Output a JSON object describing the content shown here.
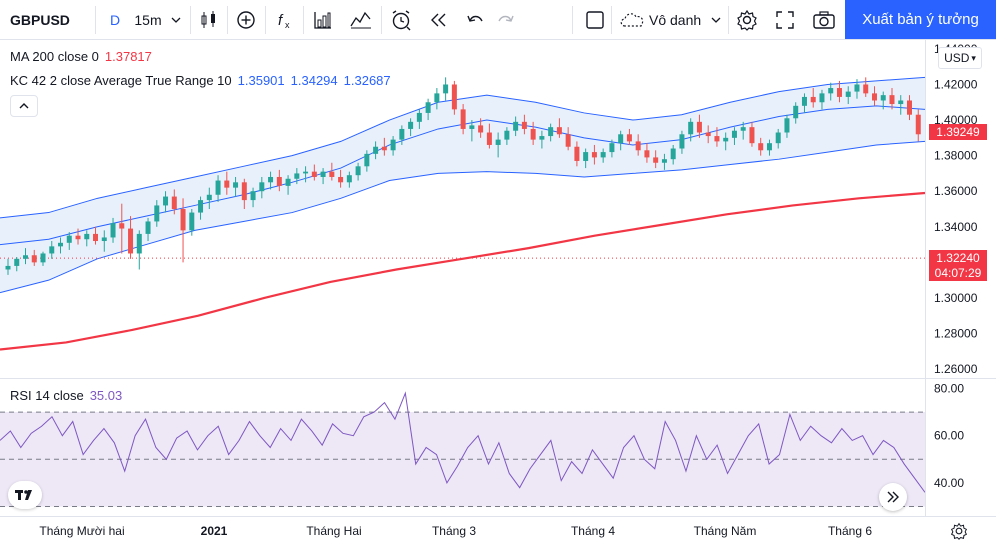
{
  "toolbar": {
    "symbol": "GBPUSD",
    "interval_type": "D",
    "interval": "15m",
    "style_name": "Vô danh",
    "publish_label": "Xuất bản ý tưởng",
    "icons": [
      "chevron-down-icon",
      "candles-icon",
      "add-indicator-icon",
      "fx-indicators-icon",
      "bar-chart-icon",
      "line-chart-icon",
      "alarm-clock-icon",
      "replay-icon",
      "undo-icon",
      "redo-icon",
      "layout-icon",
      "cloud-icon",
      "gear-icon",
      "fullscreen-icon",
      "camera-icon"
    ]
  },
  "legends": {
    "ma": {
      "label": "MA 200 close 0",
      "value": "1.37817",
      "color": "#f23645"
    },
    "kc": {
      "label": "KC 42 2 close Average True Range 10",
      "values": [
        "1.35901",
        "1.34294",
        "1.32687"
      ],
      "color": "#2962ff"
    },
    "rsi": {
      "label": "RSI 14 close",
      "value": "35.03",
      "color": "#7e57c2"
    }
  },
  "price_axis": {
    "currency": "USD",
    "ticks": [
      "1.44000",
      "1.42000",
      "1.40000",
      "1.38000",
      "1.36000",
      "1.34000",
      "1.32000",
      "1.30000",
      "1.28000",
      "1.26000"
    ],
    "last_price": "1.39249",
    "crosshair_price": "1.32240",
    "countdown": "04:07:29",
    "colors": {
      "last": "#f23645",
      "crosshair": "#f23645",
      "countdown": "#f23645"
    }
  },
  "rsi_axis": {
    "ticks": [
      "80.00",
      "60.00",
      "40.00"
    ],
    "levels": [
      70,
      50,
      30
    ]
  },
  "time_axis": {
    "labels": [
      "Tháng Mười hai",
      "2021",
      "Tháng Hai",
      "Tháng 3",
      "Tháng 4",
      "Tháng Năm",
      "Tháng 6"
    ]
  },
  "colors": {
    "up": "#26a69a",
    "down": "#ef5350",
    "band": "#2962ff",
    "band_fill": "#e8f1fb",
    "ma": "#f23645",
    "rsi": "#7e57c2",
    "rsi_fill": "#ede7f6"
  },
  "chart_data": {
    "type": "candlestick",
    "ylim": [
      1.255,
      1.445
    ],
    "candles": [
      [
        1.316,
        1.322,
        1.313,
        1.318
      ],
      [
        1.318,
        1.323,
        1.315,
        1.322
      ],
      [
        1.322,
        1.328,
        1.319,
        1.324
      ],
      [
        1.324,
        1.327,
        1.318,
        1.32
      ],
      [
        1.32,
        1.326,
        1.318,
        1.325
      ],
      [
        1.325,
        1.332,
        1.322,
        1.329
      ],
      [
        1.329,
        1.334,
        1.325,
        1.331
      ],
      [
        1.331,
        1.337,
        1.327,
        1.335
      ],
      [
        1.335,
        1.339,
        1.33,
        1.333
      ],
      [
        1.333,
        1.338,
        1.329,
        1.336
      ],
      [
        1.336,
        1.34,
        1.33,
        1.332
      ],
      [
        1.332,
        1.338,
        1.326,
        1.334
      ],
      [
        1.334,
        1.345,
        1.331,
        1.342
      ],
      [
        1.342,
        1.353,
        1.325,
        1.339
      ],
      [
        1.339,
        1.346,
        1.322,
        1.325
      ],
      [
        1.325,
        1.338,
        1.316,
        1.336
      ],
      [
        1.336,
        1.345,
        1.332,
        1.343
      ],
      [
        1.343,
        1.355,
        1.34,
        1.352
      ],
      [
        1.352,
        1.36,
        1.348,
        1.357
      ],
      [
        1.357,
        1.361,
        1.347,
        1.35
      ],
      [
        1.35,
        1.356,
        1.32,
        1.338
      ],
      [
        1.338,
        1.35,
        1.335,
        1.348
      ],
      [
        1.348,
        1.357,
        1.344,
        1.355
      ],
      [
        1.355,
        1.362,
        1.35,
        1.358
      ],
      [
        1.358,
        1.369,
        1.354,
        1.366
      ],
      [
        1.366,
        1.371,
        1.358,
        1.362
      ],
      [
        1.362,
        1.368,
        1.357,
        1.365
      ],
      [
        1.365,
        1.367,
        1.35,
        1.355
      ],
      [
        1.355,
        1.362,
        1.351,
        1.36
      ],
      [
        1.36,
        1.368,
        1.356,
        1.365
      ],
      [
        1.365,
        1.371,
        1.361,
        1.368
      ],
      [
        1.368,
        1.372,
        1.36,
        1.363
      ],
      [
        1.363,
        1.369,
        1.358,
        1.367
      ],
      [
        1.367,
        1.373,
        1.364,
        1.37
      ],
      [
        1.37,
        1.374,
        1.365,
        1.371
      ],
      [
        1.371,
        1.375,
        1.366,
        1.368
      ],
      [
        1.368,
        1.373,
        1.364,
        1.371
      ],
      [
        1.371,
        1.376,
        1.366,
        1.368
      ],
      [
        1.368,
        1.372,
        1.362,
        1.365
      ],
      [
        1.365,
        1.371,
        1.362,
        1.369
      ],
      [
        1.369,
        1.376,
        1.366,
        1.374
      ],
      [
        1.374,
        1.383,
        1.371,
        1.381
      ],
      [
        1.381,
        1.388,
        1.378,
        1.385
      ],
      [
        1.385,
        1.39,
        1.38,
        1.383
      ],
      [
        1.383,
        1.391,
        1.38,
        1.389
      ],
      [
        1.389,
        1.397,
        1.386,
        1.395
      ],
      [
        1.395,
        1.401,
        1.391,
        1.399
      ],
      [
        1.399,
        1.406,
        1.395,
        1.404
      ],
      [
        1.404,
        1.412,
        1.4,
        1.41
      ],
      [
        1.41,
        1.418,
        1.406,
        1.415
      ],
      [
        1.415,
        1.424,
        1.411,
        1.42
      ],
      [
        1.42,
        1.422,
        1.403,
        1.406
      ],
      [
        1.406,
        1.409,
        1.392,
        1.395
      ],
      [
        1.395,
        1.4,
        1.388,
        1.397
      ],
      [
        1.397,
        1.401,
        1.39,
        1.393
      ],
      [
        1.393,
        1.398,
        1.384,
        1.386
      ],
      [
        1.386,
        1.393,
        1.379,
        1.389
      ],
      [
        1.389,
        1.396,
        1.386,
        1.394
      ],
      [
        1.394,
        1.402,
        1.391,
        1.399
      ],
      [
        1.399,
        1.403,
        1.392,
        1.395
      ],
      [
        1.395,
        1.399,
        1.386,
        1.389
      ],
      [
        1.389,
        1.394,
        1.384,
        1.391
      ],
      [
        1.391,
        1.398,
        1.388,
        1.396
      ],
      [
        1.396,
        1.401,
        1.39,
        1.392
      ],
      [
        1.392,
        1.396,
        1.383,
        1.385
      ],
      [
        1.385,
        1.388,
        1.374,
        1.377
      ],
      [
        1.377,
        1.384,
        1.373,
        1.382
      ],
      [
        1.382,
        1.386,
        1.375,
        1.379
      ],
      [
        1.379,
        1.384,
        1.376,
        1.382
      ],
      [
        1.382,
        1.389,
        1.379,
        1.387
      ],
      [
        1.387,
        1.394,
        1.383,
        1.392
      ],
      [
        1.392,
        1.395,
        1.386,
        1.388
      ],
      [
        1.388,
        1.392,
        1.38,
        1.383
      ],
      [
        1.383,
        1.387,
        1.376,
        1.379
      ],
      [
        1.379,
        1.383,
        1.373,
        1.376
      ],
      [
        1.376,
        1.381,
        1.372,
        1.378
      ],
      [
        1.378,
        1.386,
        1.375,
        1.384
      ],
      [
        1.384,
        1.394,
        1.381,
        1.392
      ],
      [
        1.392,
        1.401,
        1.388,
        1.399
      ],
      [
        1.399,
        1.403,
        1.39,
        1.393
      ],
      [
        1.393,
        1.397,
        1.387,
        1.391
      ],
      [
        1.391,
        1.396,
        1.385,
        1.388
      ],
      [
        1.388,
        1.393,
        1.383,
        1.39
      ],
      [
        1.39,
        1.396,
        1.386,
        1.394
      ],
      [
        1.394,
        1.399,
        1.389,
        1.396
      ],
      [
        1.396,
        1.399,
        1.385,
        1.387
      ],
      [
        1.387,
        1.39,
        1.38,
        1.383
      ],
      [
        1.383,
        1.389,
        1.38,
        1.387
      ],
      [
        1.387,
        1.395,
        1.384,
        1.393
      ],
      [
        1.393,
        1.403,
        1.39,
        1.401
      ],
      [
        1.401,
        1.41,
        1.398,
        1.408
      ],
      [
        1.408,
        1.415,
        1.404,
        1.413
      ],
      [
        1.413,
        1.418,
        1.407,
        1.41
      ],
      [
        1.41,
        1.417,
        1.406,
        1.415
      ],
      [
        1.415,
        1.421,
        1.411,
        1.418
      ],
      [
        1.418,
        1.422,
        1.41,
        1.413
      ],
      [
        1.413,
        1.419,
        1.409,
        1.416
      ],
      [
        1.416,
        1.423,
        1.412,
        1.42
      ],
      [
        1.42,
        1.424,
        1.413,
        1.415
      ],
      [
        1.415,
        1.419,
        1.408,
        1.411
      ],
      [
        1.411,
        1.416,
        1.406,
        1.414
      ],
      [
        1.414,
        1.418,
        1.406,
        1.409
      ],
      [
        1.409,
        1.414,
        1.403,
        1.411
      ],
      [
        1.411,
        1.414,
        1.4,
        1.403
      ],
      [
        1.403,
        1.406,
        1.388,
        1.392
      ]
    ],
    "ma200": [
      1.271,
      1.275,
      1.282,
      1.29,
      1.3,
      1.309,
      1.316,
      1.322,
      1.328,
      1.335,
      1.341,
      1.347,
      1.352,
      1.356,
      1.359
    ],
    "kc_upper": [
      1.345,
      1.348,
      1.356,
      1.362,
      1.368,
      1.374,
      1.38,
      1.388,
      1.4,
      1.41,
      1.414,
      1.41,
      1.404,
      1.4,
      1.403,
      1.41,
      1.416,
      1.42,
      1.422,
      1.424
    ],
    "kc_middle": [
      1.33,
      1.333,
      1.34,
      1.346,
      1.352,
      1.358,
      1.365,
      1.373,
      1.386,
      1.395,
      1.4,
      1.396,
      1.39,
      1.386,
      1.389,
      1.396,
      1.402,
      1.406,
      1.408,
      1.406
    ],
    "kc_lower": [
      1.303,
      1.31,
      1.322,
      1.33,
      1.338,
      1.343,
      1.348,
      1.356,
      1.366,
      1.37,
      1.371,
      1.37,
      1.368,
      1.37,
      1.372,
      1.375,
      1.378,
      1.382,
      1.386,
      1.388
    ],
    "rsi": [
      58,
      62,
      55,
      61,
      64,
      68,
      60,
      66,
      52,
      58,
      63,
      57,
      45,
      60,
      67,
      55,
      50,
      59,
      62,
      54,
      60,
      64,
      52,
      58,
      66,
      60,
      55,
      63,
      58,
      67,
      62,
      56,
      65,
      61,
      60,
      68,
      70,
      74,
      67,
      78,
      48,
      55,
      52,
      40,
      47,
      55,
      60,
      48,
      57,
      44,
      38,
      46,
      52,
      58,
      41,
      49,
      44,
      54,
      48,
      42,
      55,
      60,
      50,
      46,
      66,
      58,
      45,
      60,
      50,
      56,
      44,
      52,
      60,
      65,
      48,
      52,
      69,
      58,
      64,
      60,
      57,
      63,
      58,
      60,
      52,
      58,
      55,
      48,
      42,
      36
    ]
  }
}
